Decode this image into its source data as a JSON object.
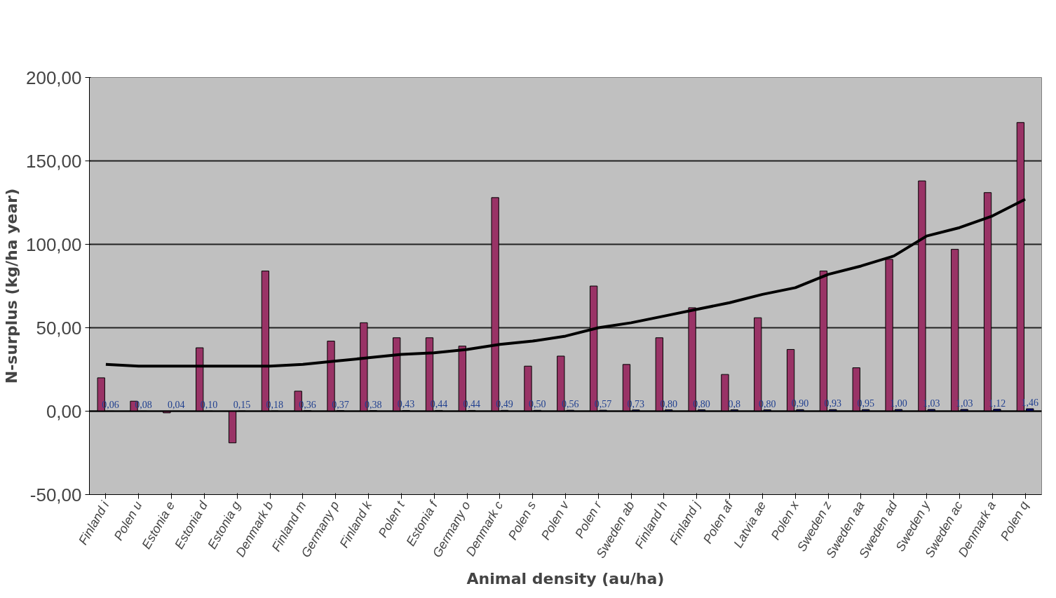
{
  "chart_data": {
    "type": "bar",
    "xlabel": "Animal density (au/ha)",
    "ylabel": "N-surplus (kg/ha year)",
    "categories": [
      "Finland i",
      "Polen u",
      "Estonia e",
      "Estonia d",
      "Estonia g",
      "Denmark b",
      "Finland m",
      "Germany p",
      "Finland k",
      "Polen t",
      "Estonia f",
      "Germany o",
      "Denmark c",
      "Polen s",
      "Polen v",
      "Polen r",
      "Sweden ab",
      "Finland h",
      "Finland j",
      "Polen af",
      "Latvia ae",
      "Polen x",
      "Sweden z",
      "Sweden aa",
      "Sweden ad",
      "Sweden y",
      "Sweden ac",
      "Denmark a",
      "Polen q"
    ],
    "series": [
      {
        "color": "#993366",
        "values": [
          20,
          6,
          -1,
          38,
          -19,
          84,
          12,
          42,
          53,
          44,
          44,
          39,
          128,
          27,
          33,
          75,
          28,
          44,
          62,
          22,
          56,
          37,
          84,
          26,
          91,
          138,
          97,
          131,
          173
        ]
      },
      {
        "color": "#000080",
        "values": [
          0.06,
          0.08,
          0.04,
          0.1,
          0.15,
          0.18,
          0.36,
          0.37,
          0.38,
          0.43,
          0.44,
          0.44,
          0.49,
          0.5,
          0.56,
          0.57,
          0.73,
          0.8,
          0.8,
          0.8,
          0.8,
          0.9,
          0.93,
          0.95,
          1.0,
          1.03,
          1.03,
          1.12,
          1.46
        ],
        "value_labels": [
          "0,06",
          "0,08",
          "0,04",
          "0,10",
          "0,15",
          "0,18",
          "0,36",
          "0,37",
          "0,38",
          "0,43",
          "0,44",
          "0,44",
          "0,49",
          "0,50",
          "0,56",
          "0,57",
          "0,73",
          "0,80",
          "0,80",
          "0,8",
          "0,80",
          "0,90",
          "0,93",
          "0,95",
          "1,00",
          "1,03",
          "1,03",
          "1,12",
          "1,46"
        ]
      },
      {
        "type": "line",
        "color": "#000000",
        "values": [
          28,
          27,
          27,
          27,
          27,
          27,
          28,
          30,
          32,
          34,
          35,
          37,
          40,
          42,
          45,
          50,
          53,
          57,
          61,
          65,
          70,
          74,
          82,
          87,
          93,
          105,
          110,
          117,
          127
        ]
      }
    ],
    "ylim": [
      -50,
      200
    ],
    "yticks": [
      {
        "value": -50,
        "label": "-50,00"
      },
      {
        "value": 0,
        "label": "0,00"
      },
      {
        "value": 50,
        "label": "50,00"
      },
      {
        "value": 100,
        "label": "100,00"
      },
      {
        "value": 150,
        "label": "150,00"
      },
      {
        "value": 200,
        "label": "200,00"
      }
    ],
    "grid": "y"
  }
}
